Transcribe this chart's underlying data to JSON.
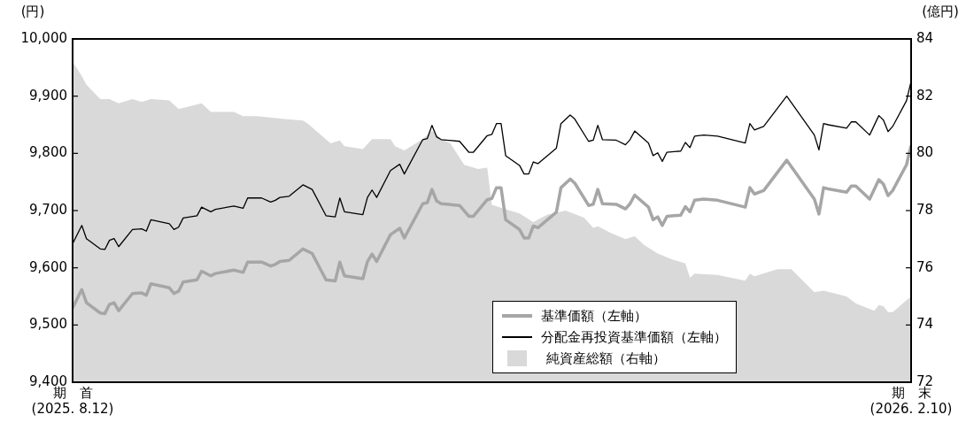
{
  "chart_data": {
    "type": "line",
    "ylabel": "(円)",
    "y2label": "(億円)",
    "xlim": [
      "2025-08-12",
      "2026-02-10"
    ],
    "xticks": [
      {
        "value": "2025-08-12",
        "label": "期　首\n(2025. 8.12)"
      },
      {
        "value": "2026-02-10",
        "label": "期　末\n(2026. 2.10)"
      }
    ],
    "ylim": [
      9400,
      10000
    ],
    "yticks": [
      {
        "value": 9400,
        "label": "9,400"
      },
      {
        "value": 9500,
        "label": "9,500"
      },
      {
        "value": 9600,
        "label": "9,600"
      },
      {
        "value": 9700,
        "label": "9,700"
      },
      {
        "value": 9800,
        "label": "9,800"
      },
      {
        "value": 9900,
        "label": "9,900"
      },
      {
        "value": 10000,
        "label": "10,000"
      }
    ],
    "y2lim": [
      72,
      84
    ],
    "y2ticks": [
      72,
      74,
      76,
      78,
      80,
      82,
      84
    ],
    "legend": "bottom",
    "series": [
      {
        "name": "基準価額（左軸）",
        "color": "#a6a6a6",
        "x": [
          "2025-08-12",
          "2025-08-14",
          "2025-08-15",
          "2025-08-18",
          "2025-08-19",
          "2025-08-20",
          "2025-08-21",
          "2025-08-22",
          "2025-08-25",
          "2025-08-27",
          "2025-08-28",
          "2025-08-29",
          "2025-09-02",
          "2025-09-03",
          "2025-09-04",
          "2025-09-05",
          "2025-09-08",
          "2025-09-09",
          "2025-09-11",
          "2025-09-12",
          "2025-09-16",
          "2025-09-18",
          "2025-09-19",
          "2025-09-22",
          "2025-09-24",
          "2025-09-25",
          "2025-09-26",
          "2025-09-28",
          "2025-10-01",
          "2025-10-03",
          "2025-10-06",
          "2025-10-08",
          "2025-10-09",
          "2025-10-10",
          "2025-10-14",
          "2025-10-15",
          "2025-10-16",
          "2025-10-17",
          "2025-10-20",
          "2025-10-22",
          "2025-10-23",
          "2025-10-27",
          "2025-10-28",
          "2025-10-29",
          "2025-10-30",
          "2025-10-31",
          "2025-11-04",
          "2025-11-06",
          "2025-11-07",
          "2025-11-10",
          "2025-11-11",
          "2025-11-12",
          "2025-11-13",
          "2025-11-14",
          "2025-11-17",
          "2025-11-18",
          "2025-11-19",
          "2025-11-20",
          "2025-11-21",
          "2025-11-25",
          "2025-11-26",
          "2025-11-28",
          "2025-11-29",
          "2025-12-02",
          "2025-12-03",
          "2025-12-04",
          "2025-12-05",
          "2025-12-08",
          "2025-12-10",
          "2025-12-11",
          "2025-12-12",
          "2025-12-15",
          "2025-12-16",
          "2025-12-17",
          "2025-12-18",
          "2025-12-19",
          "2025-12-22",
          "2025-12-23",
          "2025-12-24",
          "2025-12-25",
          "2025-12-27",
          "2025-12-30",
          "2026-01-05",
          "2026-01-06",
          "2026-01-07",
          "2026-01-09",
          "2026-01-14",
          "2026-01-20",
          "2026-01-21",
          "2026-01-22",
          "2026-01-23",
          "2026-01-27",
          "2026-01-28",
          "2026-01-29",
          "2026-02-01",
          "2026-02-03",
          "2026-02-04",
          "2026-02-05",
          "2026-02-06",
          "2026-02-09",
          "2026-02-10"
        ],
        "values": [
          9530,
          9562,
          9539,
          9521,
          9520,
          9536,
          9539,
          9525,
          9555,
          9556,
          9552,
          9572,
          9565,
          9555,
          9559,
          9575,
          9579,
          9594,
          9586,
          9590,
          9596,
          9592,
          9610,
          9610,
          9603,
          9606,
          9611,
          9613,
          9633,
          9625,
          9579,
          9577,
          9610,
          9586,
          9581,
          9611,
          9624,
          9611,
          9658,
          9669,
          9652,
          9712,
          9714,
          9737,
          9717,
          9712,
          9709,
          9690,
          9690,
          9719,
          9721,
          9740,
          9740,
          9684,
          9667,
          9652,
          9652,
          9673,
          9670,
          9697,
          9740,
          9755,
          9748,
          9709,
          9711,
          9737,
          9712,
          9711,
          9703,
          9712,
          9727,
          9706,
          9684,
          9689,
          9674,
          9690,
          9692,
          9707,
          9698,
          9718,
          9720,
          9718,
          9706,
          9740,
          9729,
          9735,
          9788,
          9720,
          9694,
          9740,
          9738,
          9732,
          9743,
          9743,
          9720,
          9754,
          9746,
          9726,
          9735,
          9780,
          9814
        ]
      },
      {
        "name": "分配金再投資基準価額（左軸）",
        "color": "#000000",
        "x": [
          "2025-08-12",
          "2025-08-14",
          "2025-08-15",
          "2025-08-18",
          "2025-08-19",
          "2025-08-20",
          "2025-08-21",
          "2025-08-22",
          "2025-08-25",
          "2025-08-27",
          "2025-08-28",
          "2025-08-29",
          "2025-09-02",
          "2025-09-03",
          "2025-09-04",
          "2025-09-05",
          "2025-09-08",
          "2025-09-09",
          "2025-09-11",
          "2025-09-12",
          "2025-09-16",
          "2025-09-18",
          "2025-09-19",
          "2025-09-22",
          "2025-09-24",
          "2025-09-25",
          "2025-09-26",
          "2025-09-28",
          "2025-10-01",
          "2025-10-03",
          "2025-10-06",
          "2025-10-08",
          "2025-10-09",
          "2025-10-10",
          "2025-10-14",
          "2025-10-15",
          "2025-10-16",
          "2025-10-17",
          "2025-10-20",
          "2025-10-22",
          "2025-10-23",
          "2025-10-27",
          "2025-10-28",
          "2025-10-29",
          "2025-10-30",
          "2025-10-31",
          "2025-11-04",
          "2025-11-06",
          "2025-11-07",
          "2025-11-10",
          "2025-11-11",
          "2025-11-12",
          "2025-11-13",
          "2025-11-14",
          "2025-11-17",
          "2025-11-18",
          "2025-11-19",
          "2025-11-20",
          "2025-11-21",
          "2025-11-25",
          "2025-11-26",
          "2025-11-28",
          "2025-11-29",
          "2025-12-02",
          "2025-12-03",
          "2025-12-04",
          "2025-12-05",
          "2025-12-08",
          "2025-12-10",
          "2025-12-11",
          "2025-12-12",
          "2025-12-15",
          "2025-12-16",
          "2025-12-17",
          "2025-12-18",
          "2025-12-19",
          "2025-12-22",
          "2025-12-23",
          "2025-12-24",
          "2025-12-25",
          "2025-12-27",
          "2025-12-30",
          "2026-01-05",
          "2026-01-06",
          "2026-01-07",
          "2026-01-09",
          "2026-01-14",
          "2026-01-20",
          "2026-01-21",
          "2026-01-22",
          "2026-01-23",
          "2026-01-27",
          "2026-01-28",
          "2026-01-29",
          "2026-02-01",
          "2026-02-03",
          "2026-02-04",
          "2026-02-05",
          "2026-02-06",
          "2026-02-09",
          "2026-02-10"
        ],
        "values": [
          9642,
          9674,
          9651,
          9633,
          9632,
          9648,
          9651,
          9637,
          9667,
          9668,
          9664,
          9684,
          9677,
          9667,
          9671,
          9687,
          9691,
          9706,
          9698,
          9702,
          9708,
          9704,
          9722,
          9722,
          9715,
          9718,
          9723,
          9725,
          9745,
          9737,
          9691,
          9689,
          9722,
          9698,
          9693,
          9723,
          9736,
          9723,
          9770,
          9781,
          9764,
          9824,
          9826,
          9849,
          9829,
          9824,
          9821,
          9802,
          9802,
          9831,
          9833,
          9852,
          9852,
          9796,
          9779,
          9764,
          9764,
          9785,
          9782,
          9809,
          9852,
          9867,
          9860,
          9821,
          9823,
          9849,
          9824,
          9823,
          9815,
          9824,
          9839,
          9818,
          9796,
          9801,
          9786,
          9802,
          9804,
          9819,
          9810,
          9830,
          9832,
          9830,
          9818,
          9852,
          9841,
          9847,
          9900,
          9832,
          9806,
          9852,
          9850,
          9844,
          9855,
          9855,
          9832,
          9866,
          9858,
          9838,
          9847,
          9892,
          9926
        ]
      },
      {
        "name": "純資産総額（右軸）",
        "type": "area",
        "axis": "y2",
        "color": "#d9d9d9",
        "x": [
          "2025-08-12",
          "2025-08-14",
          "2025-08-15",
          "2025-08-18",
          "2025-08-20",
          "2025-08-22",
          "2025-08-25",
          "2025-08-27",
          "2025-08-29",
          "2025-09-02",
          "2025-09-04",
          "2025-09-09",
          "2025-09-11",
          "2025-09-16",
          "2025-09-18",
          "2025-09-21",
          "2025-09-27",
          "2025-10-01",
          "2025-10-02",
          "2025-10-07",
          "2025-10-09",
          "2025-10-10",
          "2025-10-14",
          "2025-10-16",
          "2025-10-20",
          "2025-10-21",
          "2025-10-23",
          "2025-10-27",
          "2025-10-29",
          "2025-10-31",
          "2025-11-02",
          "2025-11-05",
          "2025-11-08",
          "2025-11-10",
          "2025-11-11",
          "2025-11-14",
          "2025-11-17",
          "2025-11-20",
          "2025-11-23",
          "2025-11-27",
          "2025-12-01",
          "2025-12-03",
          "2025-12-04",
          "2025-12-07",
          "2025-12-10",
          "2025-12-12",
          "2025-12-14",
          "2025-12-17",
          "2025-12-20",
          "2025-12-23",
          "2025-12-24",
          "2025-12-25",
          "2025-12-30",
          "2026-01-05",
          "2026-01-06",
          "2026-01-07",
          "2026-01-12",
          "2026-01-15",
          "2026-01-20",
          "2026-01-22",
          "2026-01-27",
          "2026-01-29",
          "2026-02-02",
          "2026-02-03",
          "2026-02-04",
          "2026-02-05",
          "2026-02-06",
          "2026-02-10"
        ],
        "values": [
          83.2,
          82.7,
          82.4,
          81.9,
          81.9,
          81.75,
          81.9,
          81.8,
          81.9,
          81.85,
          81.55,
          81.75,
          81.45,
          81.45,
          81.3,
          81.3,
          81.2,
          81.15,
          81.05,
          80.35,
          80.45,
          80.25,
          80.15,
          80.5,
          80.5,
          80.25,
          80.1,
          80.5,
          80.8,
          80.5,
          80.35,
          79.6,
          79.45,
          79.5,
          78.2,
          78.05,
          77.9,
          77.6,
          77.85,
          78.0,
          77.75,
          77.4,
          77.45,
          77.2,
          77.0,
          77.1,
          76.8,
          76.5,
          76.3,
          76.15,
          75.65,
          75.8,
          75.75,
          75.55,
          75.8,
          75.7,
          75.95,
          75.95,
          75.15,
          75.2,
          75.0,
          74.75,
          74.5,
          74.7,
          74.65,
          74.45,
          74.45,
          75.0
        ]
      }
    ]
  }
}
